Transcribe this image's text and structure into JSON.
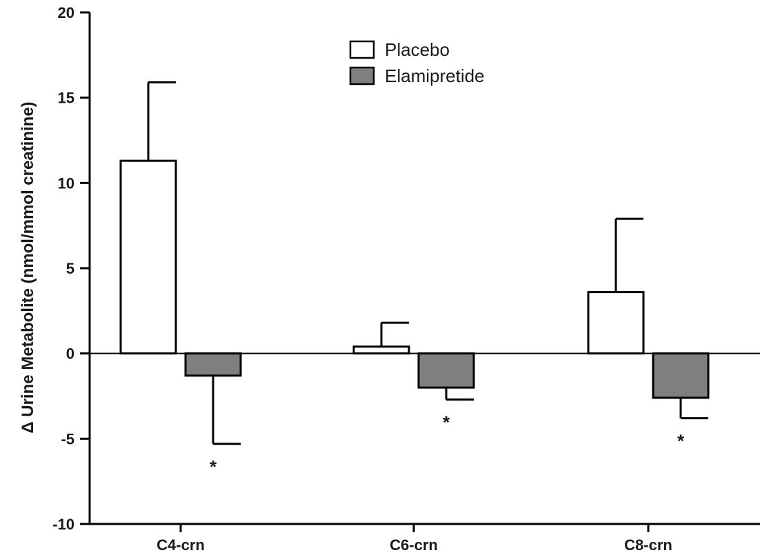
{
  "chart_data": {
    "type": "bar",
    "ylabel": "Δ Urine Metabolite (nmol/mmol creatinine)",
    "ylim": [
      -10,
      20
    ],
    "yticks": [
      -10,
      -5,
      0,
      5,
      10,
      15,
      20
    ],
    "categories": [
      "C4-crn",
      "C6-crn",
      "C8-crn"
    ],
    "legend_position": "top-center",
    "series": [
      {
        "name": "Placebo",
        "values": [
          11.3,
          0.4,
          3.6
        ],
        "error": [
          4.6,
          1.4,
          4.3
        ],
        "color": "#ffffff"
      },
      {
        "name": "Elamipretide",
        "values": [
          -1.3,
          -2.0,
          -2.6
        ],
        "error": [
          4.0,
          0.7,
          1.2
        ],
        "color": "#7f7f7f"
      }
    ],
    "annotations": [
      {
        "category": "C4-crn",
        "series": "Elamipretide",
        "text": "*"
      },
      {
        "category": "C6-crn",
        "series": "Elamipretide",
        "text": "*"
      },
      {
        "category": "C8-crn",
        "series": "Elamipretide",
        "text": "*"
      }
    ],
    "grid": false
  }
}
